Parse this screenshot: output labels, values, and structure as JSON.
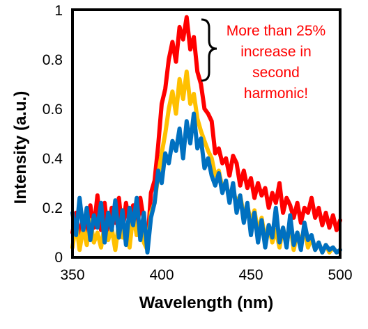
{
  "chart_data": {
    "type": "line",
    "title": "",
    "xlabel": "Wavelength (nm)",
    "ylabel": "Intensity (a.u.)",
    "xlim": [
      350,
      500
    ],
    "ylim": [
      0,
      1
    ],
    "x_ticks": [
      "350",
      "400",
      "450",
      "500"
    ],
    "y_ticks": [
      "0",
      "0.2",
      "0.4",
      "0.6",
      "0.8",
      "1"
    ],
    "grid": false,
    "legend": "none",
    "annotation": {
      "lines": [
        "More than 25%",
        "increase in",
        "second",
        "harmonic!"
      ],
      "color": "#ff0000"
    },
    "series": [
      {
        "color": "#ff0000",
        "x": [
          350,
          352,
          354,
          356,
          358,
          360,
          362,
          364,
          366,
          368,
          370,
          372,
          374,
          376,
          378,
          380,
          382,
          384,
          386,
          388,
          390,
          392,
          394,
          396,
          398,
          400,
          402,
          404,
          406,
          408,
          410,
          412,
          414,
          416,
          418,
          420,
          422,
          424,
          426,
          428,
          430,
          432,
          434,
          436,
          438,
          440,
          442,
          444,
          446,
          448,
          450,
          452,
          454,
          456,
          458,
          460,
          462,
          464,
          466,
          468,
          470,
          472,
          474,
          476,
          478,
          480,
          482,
          484,
          486,
          488,
          490,
          492,
          494,
          496,
          498,
          500
        ],
        "y": [
          0.1,
          0.18,
          0.08,
          0.16,
          0.07,
          0.21,
          0.12,
          0.25,
          0.11,
          0.22,
          0.09,
          0.2,
          0.14,
          0.24,
          0.1,
          0.22,
          0.13,
          0.21,
          0.09,
          0.24,
          0.15,
          0.05,
          0.26,
          0.31,
          0.45,
          0.62,
          0.68,
          0.8,
          0.87,
          0.79,
          0.93,
          0.88,
          0.97,
          0.84,
          0.89,
          0.75,
          0.7,
          0.6,
          0.58,
          0.55,
          0.42,
          0.44,
          0.38,
          0.4,
          0.33,
          0.41,
          0.38,
          0.29,
          0.35,
          0.28,
          0.32,
          0.24,
          0.3,
          0.25,
          0.28,
          0.2,
          0.26,
          0.22,
          0.3,
          0.18,
          0.24,
          0.21,
          0.16,
          0.22,
          0.14,
          0.2,
          0.18,
          0.24,
          0.16,
          0.2,
          0.13,
          0.18,
          0.12,
          0.17,
          0.11,
          0.15
        ]
      },
      {
        "color": "#ffc000",
        "x": [
          350,
          352,
          354,
          356,
          358,
          360,
          362,
          364,
          366,
          368,
          370,
          372,
          374,
          376,
          378,
          380,
          382,
          384,
          386,
          388,
          390,
          392,
          394,
          396,
          398,
          400,
          402,
          404,
          406,
          408,
          410,
          412,
          414,
          416,
          418,
          420,
          422,
          424,
          426,
          428,
          430,
          432,
          434,
          436,
          438,
          440,
          442,
          444,
          446,
          448,
          450,
          452,
          454,
          456,
          458,
          460,
          462,
          464,
          466,
          468,
          470,
          472,
          474,
          476,
          478,
          480,
          482,
          484,
          486,
          488,
          490,
          492,
          494,
          496,
          498,
          500
        ],
        "y": [
          0.04,
          0.14,
          0.03,
          0.12,
          0.05,
          0.15,
          0.06,
          0.1,
          0.04,
          0.13,
          0.07,
          0.12,
          0.03,
          0.14,
          0.08,
          0.11,
          0.04,
          0.17,
          0.09,
          0.13,
          0.06,
          0.03,
          0.18,
          0.22,
          0.33,
          0.42,
          0.5,
          0.6,
          0.67,
          0.58,
          0.72,
          0.64,
          0.75,
          0.62,
          0.66,
          0.56,
          0.51,
          0.47,
          0.43,
          0.4,
          0.33,
          0.35,
          0.28,
          0.3,
          0.24,
          0.27,
          0.22,
          0.25,
          0.17,
          0.21,
          0.14,
          0.19,
          0.1,
          0.16,
          0.07,
          0.13,
          0.06,
          0.11,
          0.04,
          0.12,
          0.05,
          0.14,
          0.03,
          0.1,
          0.06,
          0.12,
          0.04,
          0.08,
          0.03,
          0.06,
          0.02,
          0.05,
          0.02,
          0.04,
          0.02,
          0.03
        ]
      },
      {
        "color": "#0070c0",
        "x": [
          350,
          352,
          354,
          356,
          358,
          360,
          362,
          364,
          366,
          368,
          370,
          372,
          374,
          376,
          378,
          380,
          382,
          384,
          386,
          388,
          390,
          392,
          394,
          396,
          398,
          400,
          402,
          404,
          406,
          408,
          410,
          412,
          414,
          416,
          418,
          420,
          422,
          424,
          426,
          428,
          430,
          432,
          434,
          436,
          438,
          440,
          442,
          444,
          446,
          448,
          450,
          452,
          454,
          456,
          458,
          460,
          462,
          464,
          466,
          468,
          470,
          472,
          474,
          476,
          478,
          480,
          482,
          484,
          486,
          488,
          490,
          492,
          494,
          496,
          498,
          500
        ],
        "y": [
          0.18,
          0.09,
          0.24,
          0.11,
          0.2,
          0.07,
          0.17,
          0.12,
          0.22,
          0.06,
          0.18,
          0.11,
          0.23,
          0.08,
          0.19,
          0.05,
          0.2,
          0.13,
          0.24,
          0.07,
          0.18,
          0.02,
          0.16,
          0.22,
          0.35,
          0.3,
          0.42,
          0.38,
          0.47,
          0.43,
          0.52,
          0.4,
          0.55,
          0.46,
          0.58,
          0.44,
          0.48,
          0.36,
          0.4,
          0.33,
          0.29,
          0.34,
          0.26,
          0.31,
          0.22,
          0.3,
          0.18,
          0.25,
          0.14,
          0.22,
          0.09,
          0.18,
          0.06,
          0.15,
          0.04,
          0.13,
          0.08,
          0.2,
          0.06,
          0.12,
          0.04,
          0.17,
          0.05,
          0.1,
          0.03,
          0.14,
          0.07,
          0.09,
          0.03,
          0.06,
          0.02,
          0.05,
          0.03,
          0.04,
          0.02,
          0.03
        ]
      }
    ]
  }
}
